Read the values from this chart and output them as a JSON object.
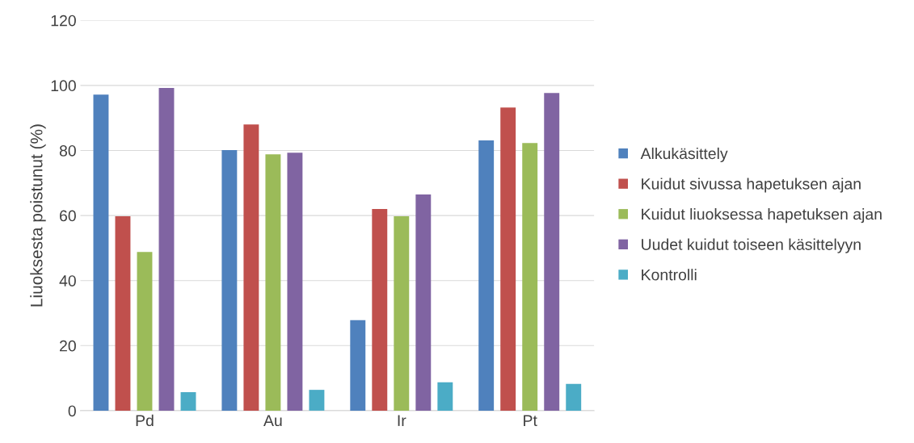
{
  "chart_data": {
    "type": "bar",
    "ylabel": "Liuoksesta poistunut (%)",
    "categories": [
      "Pd",
      "Au",
      "Ir",
      "Pt"
    ],
    "series": [
      {
        "name": "Alkukäsittely",
        "color": "#4f81bd",
        "values": [
          97.2,
          80.1,
          27.8,
          83.1
        ]
      },
      {
        "name": "Kuidut sivussa hapetuksen ajan",
        "color": "#c0504d",
        "values": [
          59.8,
          88.0,
          62.0,
          93.2
        ]
      },
      {
        "name": "Kuidut liuoksessa hapetuksen ajan",
        "color": "#9bbb59",
        "values": [
          48.8,
          78.8,
          59.8,
          82.3
        ]
      },
      {
        "name": "Uudet kuidut toiseen käsittelyyn",
        "color": "#8064a2",
        "values": [
          99.2,
          79.3,
          66.5,
          97.7
        ]
      },
      {
        "name": "Kontrolli",
        "color": "#4bacc6",
        "values": [
          5.7,
          6.4,
          8.7,
          8.2
        ]
      }
    ],
    "ylim": [
      0,
      120
    ],
    "yticks": [
      0,
      20,
      40,
      60,
      80,
      100,
      120
    ],
    "grid": "y",
    "legend": "right"
  }
}
